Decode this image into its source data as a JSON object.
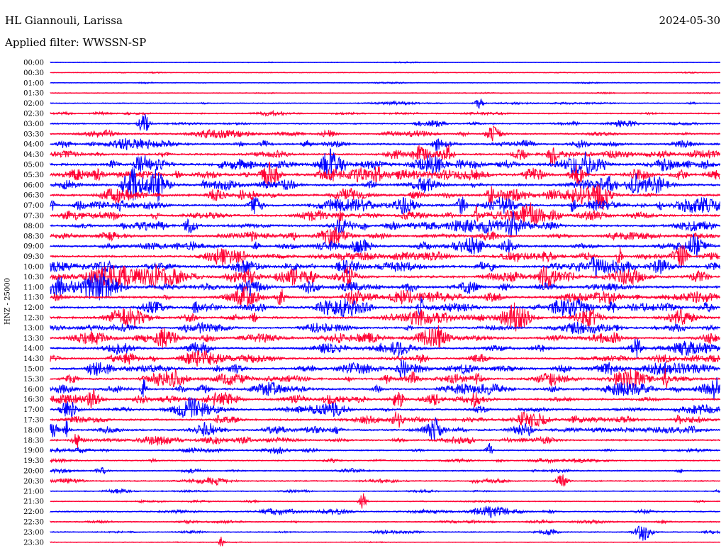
{
  "header": {
    "station": "HL Giannouli, Larissa",
    "date": "2024-05-30",
    "filter": "Applied filter: WWSSN-SP"
  },
  "chart_data": {
    "type": "line",
    "title": "HL Giannouli, Larissa",
    "date": "2024-05-30",
    "filter": "WWSSN-SP",
    "ylabel": "HNZ - 25000",
    "trace_colors": [
      "#0000ff",
      "#ff0033"
    ],
    "rows": [
      {
        "label": "00:00",
        "amplitude": 0.06
      },
      {
        "label": "00:30",
        "amplitude": 0.08
      },
      {
        "label": "01:00",
        "amplitude": 0.12
      },
      {
        "label": "01:30",
        "amplitude": 0.1
      },
      {
        "label": "02:00",
        "amplitude": 0.22
      },
      {
        "label": "02:30",
        "amplitude": 0.35
      },
      {
        "label": "03:00",
        "amplitude": 0.4
      },
      {
        "label": "03:30",
        "amplitude": 0.55
      },
      {
        "label": "04:00",
        "amplitude": 0.65
      },
      {
        "label": "04:30",
        "amplitude": 0.7
      },
      {
        "label": "05:00",
        "amplitude": 0.95
      },
      {
        "label": "05:30",
        "amplitude": 1.0
      },
      {
        "label": "06:00",
        "amplitude": 0.9
      },
      {
        "label": "06:30",
        "amplitude": 0.85
      },
      {
        "label": "07:00",
        "amplitude": 0.9
      },
      {
        "label": "07:30",
        "amplitude": 0.8
      },
      {
        "label": "08:00",
        "amplitude": 0.85
      },
      {
        "label": "08:30",
        "amplitude": 0.75
      },
      {
        "label": "09:00",
        "amplitude": 0.8
      },
      {
        "label": "09:30",
        "amplitude": 0.75
      },
      {
        "label": "10:00",
        "amplitude": 1.0
      },
      {
        "label": "10:30",
        "amplitude": 1.0
      },
      {
        "label": "11:00",
        "amplitude": 0.95
      },
      {
        "label": "11:30",
        "amplitude": 0.85
      },
      {
        "label": "12:00",
        "amplitude": 0.9
      },
      {
        "label": "12:30",
        "amplitude": 0.85
      },
      {
        "label": "13:00",
        "amplitude": 0.75
      },
      {
        "label": "13:30",
        "amplitude": 0.75
      },
      {
        "label": "14:00",
        "amplitude": 0.75
      },
      {
        "label": "14:30",
        "amplitude": 0.7
      },
      {
        "label": "15:00",
        "amplitude": 0.85
      },
      {
        "label": "15:30",
        "amplitude": 0.8
      },
      {
        "label": "16:00",
        "amplitude": 0.8
      },
      {
        "label": "16:30",
        "amplitude": 0.7
      },
      {
        "label": "17:00",
        "amplitude": 0.7
      },
      {
        "label": "17:30",
        "amplitude": 0.7
      },
      {
        "label": "18:00",
        "amplitude": 0.7
      },
      {
        "label": "18:30",
        "amplitude": 0.6
      },
      {
        "label": "19:00",
        "amplitude": 0.4
      },
      {
        "label": "19:30",
        "amplitude": 0.3
      },
      {
        "label": "20:00",
        "amplitude": 0.35
      },
      {
        "label": "20:30",
        "amplitude": 0.35
      },
      {
        "label": "21:00",
        "amplitude": 0.2
      },
      {
        "label": "21:30",
        "amplitude": 0.18
      },
      {
        "label": "22:00",
        "amplitude": 0.4
      },
      {
        "label": "22:30",
        "amplitude": 0.3
      },
      {
        "label": "23:00",
        "amplitude": 0.25
      },
      {
        "label": "23:30",
        "amplitude": 0.05
      }
    ]
  }
}
